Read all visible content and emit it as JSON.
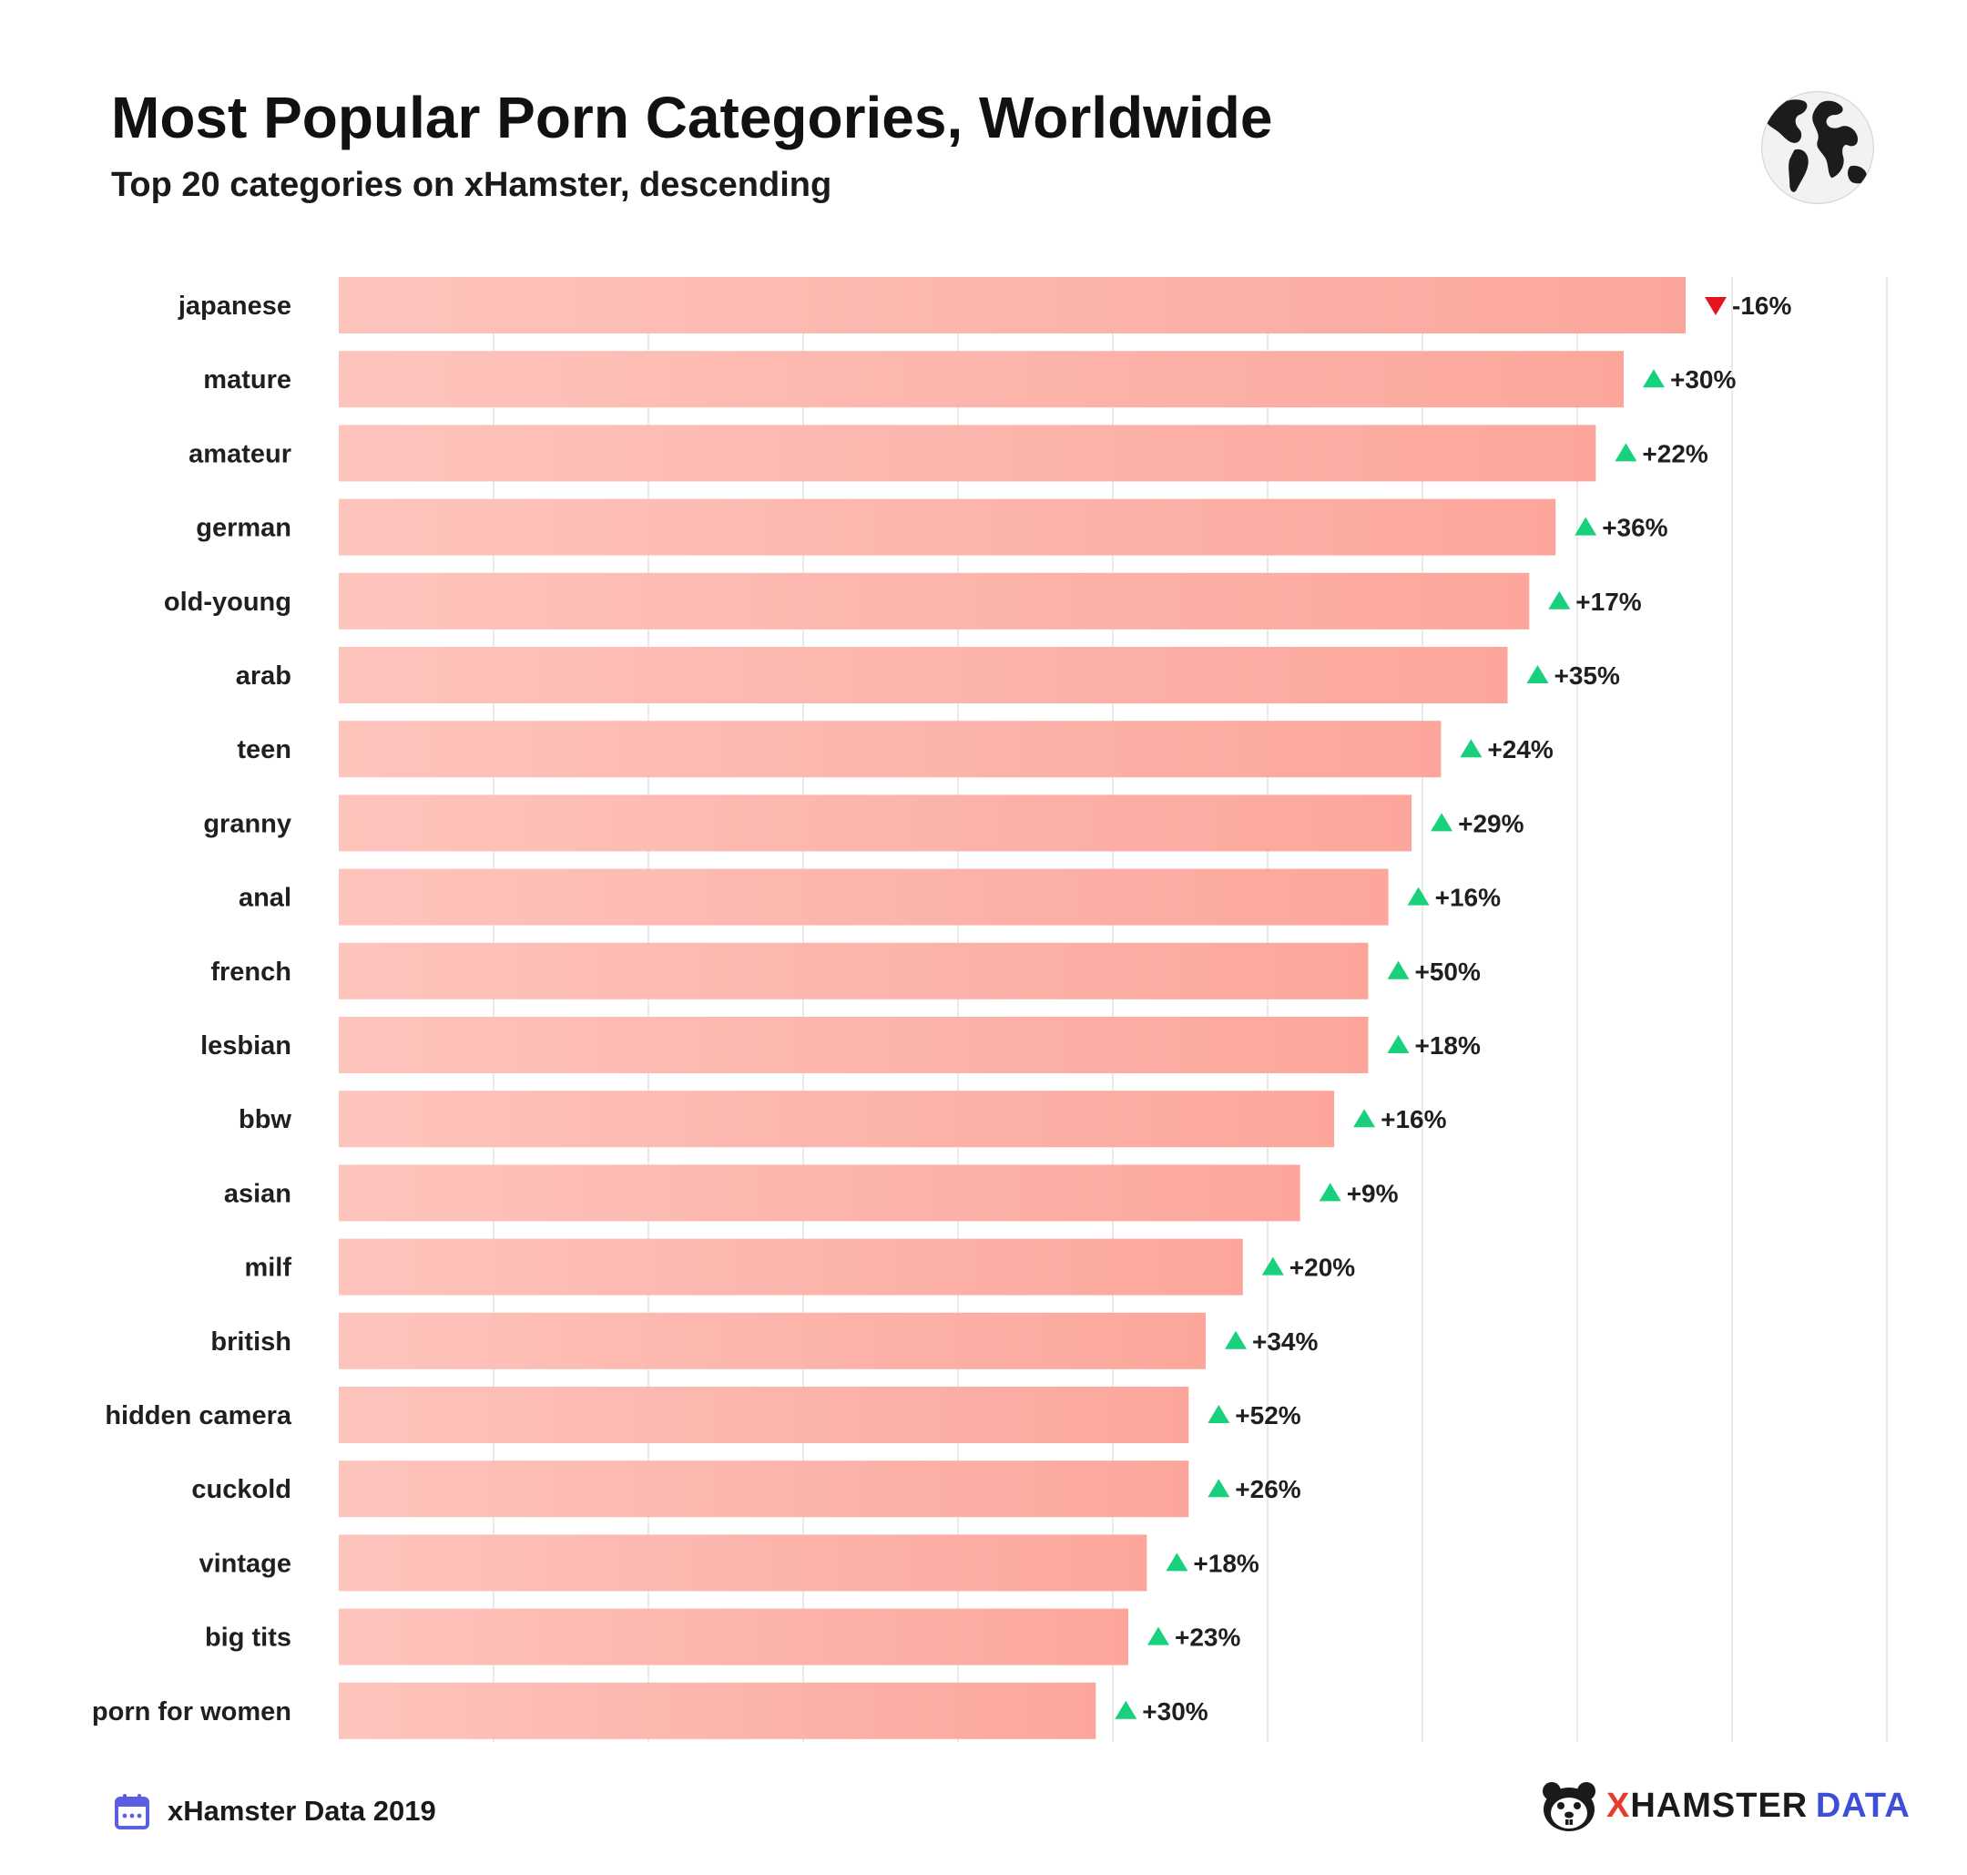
{
  "header": {
    "title": "Most Popular Porn Categories, Worldwide",
    "subtitle": "Top 20 categories on xHamster, descending"
  },
  "footer": {
    "source": "xHamster Data 2019",
    "brand_part1": "X",
    "brand_part2": "HAMSTER",
    "brand_part3": "DATA"
  },
  "icons": {
    "globe": "globe-icon",
    "calendar": "calendar-icon",
    "brand_logo": "hamster-logo-icon",
    "increase": "triangle-up-icon",
    "decrease": "triangle-down-icon"
  },
  "colors": {
    "bar_start": "#fdc4bd",
    "bar_end": "#fca69b",
    "increase": "#19d17c",
    "decrease": "#e3161f",
    "brand_red": "#e63b2e",
    "brand_blue": "#3d4fd6",
    "calendar": "#5b5ee0"
  },
  "chart_data": {
    "type": "bar",
    "orientation": "horizontal",
    "categories": [
      "japanese",
      "mature",
      "amateur",
      "german",
      "old-young",
      "arab",
      "teen",
      "granny",
      "anal",
      "french",
      "lesbian",
      "bbw",
      "asian",
      "milf",
      "british",
      "hidden camera",
      "cuckold",
      "vintage",
      "big tits",
      "porn for women"
    ],
    "values": [
      87,
      83,
      81.2,
      78.6,
      76.9,
      75.5,
      71.2,
      69.3,
      67.8,
      66.5,
      66.5,
      64.3,
      62.1,
      58.4,
      56,
      54.9,
      54.9,
      52.2,
      51,
      48.9
    ],
    "changes": [
      "-16%",
      "+30%",
      "+22%",
      "+36%",
      "+17%",
      "+35%",
      "+24%",
      "+29%",
      "+16%",
      "+50%",
      "+18%",
      "+16%",
      "+9%",
      "+20%",
      "+34%",
      "+52%",
      "+26%",
      "+18%",
      "+23%",
      "+30%"
    ],
    "change_direction": [
      "down",
      "up",
      "up",
      "up",
      "up",
      "up",
      "up",
      "up",
      "up",
      "up",
      "up",
      "up",
      "up",
      "up",
      "up",
      "up",
      "up",
      "up",
      "up",
      "up"
    ],
    "xlim": [
      0,
      100
    ],
    "x_gridlines": 10,
    "axis_labels_shown": false,
    "grid": true
  }
}
